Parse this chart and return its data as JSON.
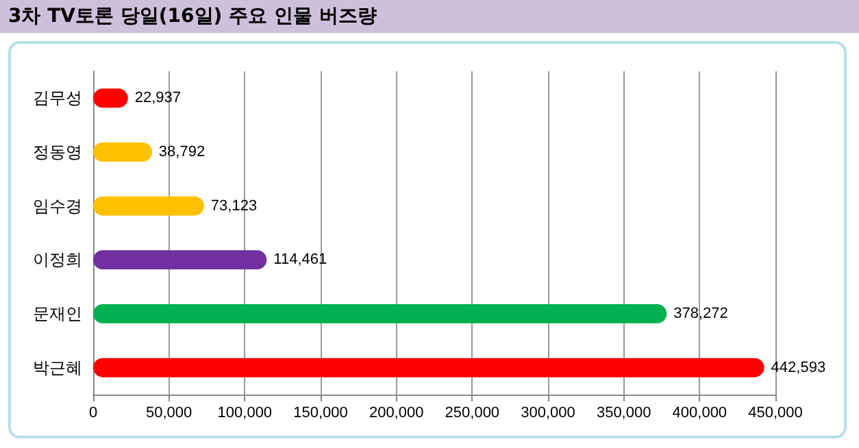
{
  "chart_data": {
    "type": "bar",
    "orientation": "horizontal",
    "title": "3차 TV토론 당일(16일) 주요 인물 버즈량",
    "categories": [
      "김무성",
      "정동영",
      "임수경",
      "이정희",
      "문재인",
      "박근혜"
    ],
    "values": [
      22937,
      38792,
      73123,
      114461,
      378272,
      442593
    ],
    "colors": [
      "#ff0000",
      "#ffc000",
      "#ffc000",
      "#7030a0",
      "#00b050",
      "#ff0000"
    ],
    "value_labels": [
      "22,937",
      "38,792",
      "73,123",
      "114,461",
      "378,272",
      "442,593"
    ],
    "xlim": [
      0,
      450000
    ],
    "xticks": [
      0,
      {
        "value": 50000,
        "label": "50,000"
      },
      {
        "value": 100000,
        "label": "100,000"
      },
      {
        "value": 150000,
        "label": "150,000"
      },
      {
        "value": 200000,
        "label": "200,000"
      },
      {
        "value": 250000,
        "label": "250,000"
      },
      {
        "value": 300000,
        "label": "300,000"
      },
      {
        "value": 350000,
        "label": "350,000"
      },
      {
        "value": 400000,
        "label": "400,000"
      },
      {
        "value": 450000,
        "label": "450,000"
      }
    ],
    "grid": "x"
  }
}
